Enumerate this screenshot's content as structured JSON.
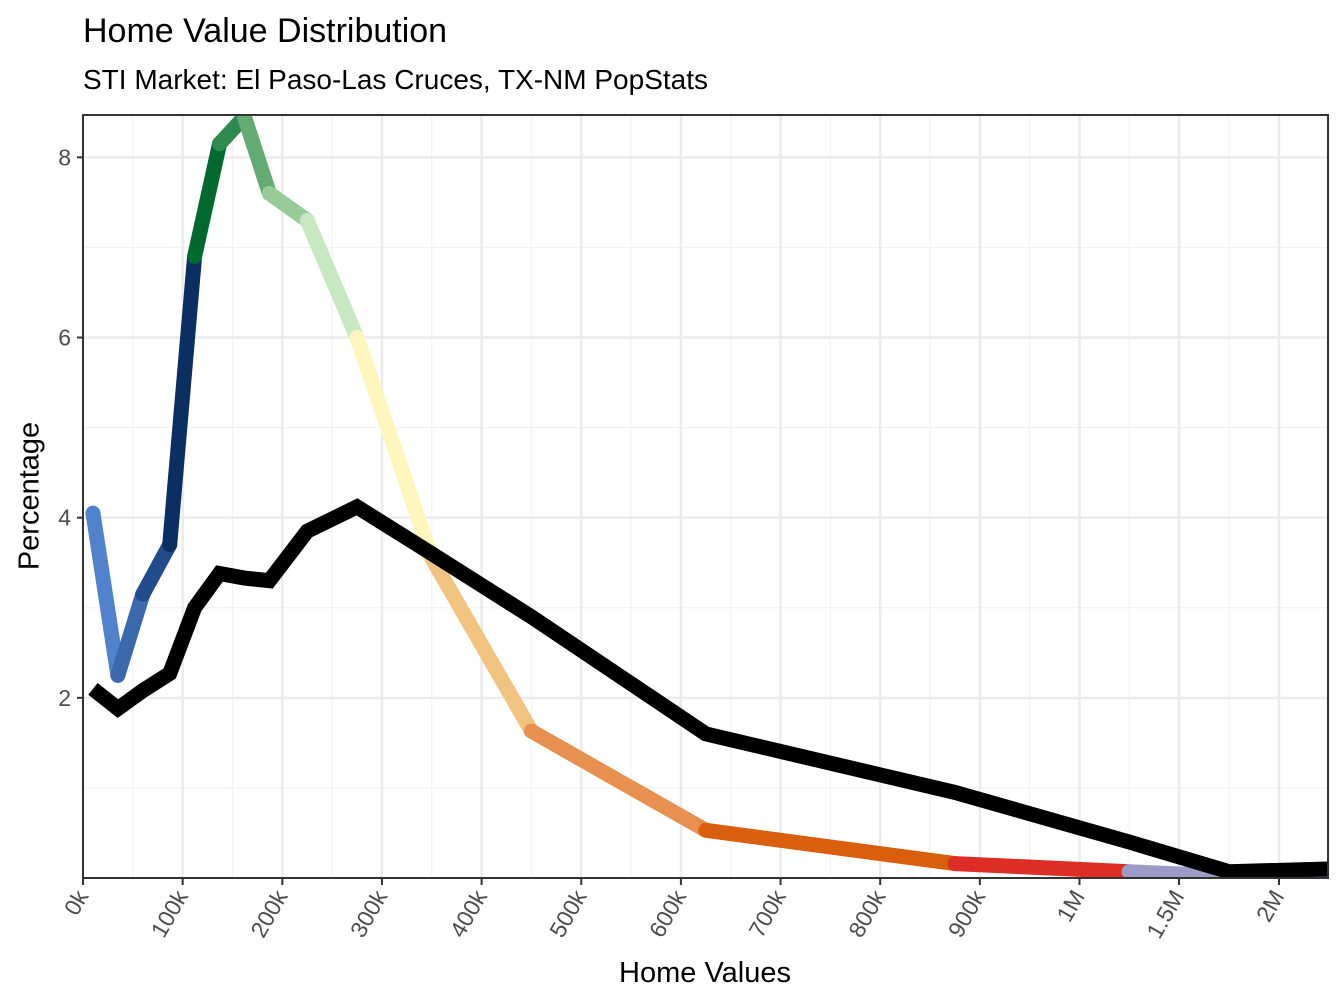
{
  "chart_data": {
    "type": "line",
    "title": "Home Value Distribution",
    "subtitle": "STI Market: El Paso-Las Cruces, TX-NM PopStats",
    "xlabel": "Home Values",
    "ylabel": "Percentage",
    "ylim": [
      0,
      8.47
    ],
    "grid": true,
    "x_tick_labels": [
      "0k",
      "100k",
      "200k",
      "300k",
      "400k",
      "500k",
      "600k",
      "700k",
      "800k",
      "900k",
      "1M",
      "1.5M",
      "2M"
    ],
    "x_tick_values": [
      0,
      100000,
      200000,
      300000,
      400000,
      500000,
      600000,
      700000,
      800000,
      900000,
      1000000,
      1500000,
      2000000
    ],
    "y_ticks": [
      2,
      4,
      6,
      8
    ],
    "x": [
      10000,
      35000,
      60000,
      87000,
      112000,
      137000,
      162000,
      187000,
      225000,
      275000,
      350000,
      450000,
      625000,
      875000,
      1250000,
      1750000,
      2250000
    ],
    "series": [
      {
        "values": [
          4.05,
          2.25,
          3.15,
          3.7,
          6.9,
          8.15,
          8.45,
          7.6,
          7.3,
          6.0,
          3.55,
          1.63,
          0.53,
          0.16,
          0.07,
          0.02,
          0.0
        ],
        "segment_colors": [
          "#5182cc",
          "#3b69ab",
          "#234c8c",
          "#0c2f63",
          "#006a2e",
          "#2f8a4f",
          "#63ab73",
          "#98cb98",
          "#c7e8c0",
          "#fff6bd",
          "#f0c380",
          "#e89050",
          "#d95f0e",
          "#de2d26",
          "#9e9ac8",
          "#756bb1"
        ]
      },
      {
        "values": [
          2.1,
          1.88,
          2.08,
          2.27,
          3.0,
          3.38,
          3.33,
          3.3,
          3.85,
          4.12,
          3.6,
          2.9,
          1.6,
          0.95,
          0.4,
          0.07,
          0.1
        ],
        "color": "#000000"
      }
    ]
  }
}
